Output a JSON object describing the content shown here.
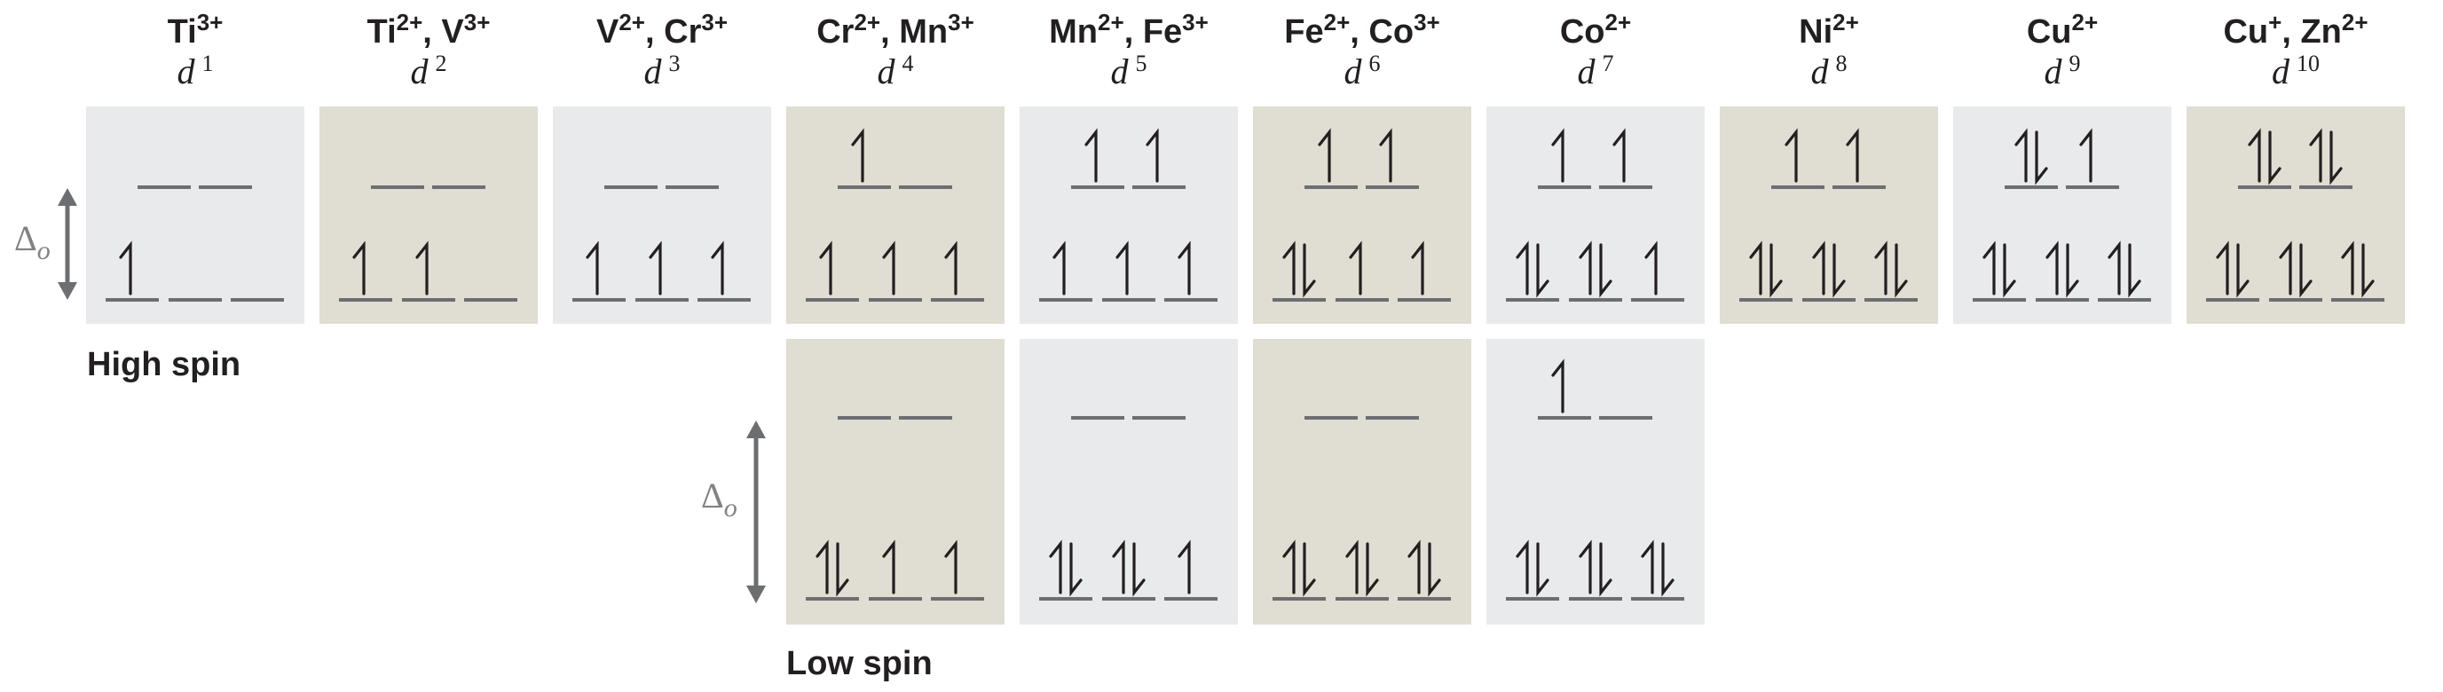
{
  "colors": {
    "gray_panel": "#e9eaec",
    "tan_panel": "#e0ddd3",
    "level": "#6d6e71",
    "text": "#231f20",
    "gap_arrow": "#6d6e71"
  },
  "columns": [
    {
      "ions": [
        {
          "sym": "Ti",
          "charge": "3+"
        }
      ],
      "config": "1",
      "high": {
        "eg": [
          "",
          ""
        ],
        "t2g": [
          "up",
          "",
          ""
        ],
        "panel": "gray"
      },
      "low": null
    },
    {
      "ions": [
        {
          "sym": "Ti",
          "charge": "2+"
        },
        {
          "sym": "V",
          "charge": "3+"
        }
      ],
      "config": "2",
      "high": {
        "eg": [
          "",
          ""
        ],
        "t2g": [
          "up",
          "up",
          ""
        ],
        "panel": "tan"
      },
      "low": null
    },
    {
      "ions": [
        {
          "sym": "V",
          "charge": "2+"
        },
        {
          "sym": "Cr",
          "charge": "3+"
        }
      ],
      "config": "3",
      "high": {
        "eg": [
          "",
          ""
        ],
        "t2g": [
          "up",
          "up",
          "up"
        ],
        "panel": "gray"
      },
      "low": null
    },
    {
      "ions": [
        {
          "sym": "Cr",
          "charge": "2+"
        },
        {
          "sym": "Mn",
          "charge": "3+"
        }
      ],
      "config": "4",
      "high": {
        "eg": [
          "up",
          ""
        ],
        "t2g": [
          "up",
          "up",
          "up"
        ],
        "panel": "tan"
      },
      "low": {
        "eg": [
          "",
          ""
        ],
        "t2g": [
          "pair",
          "up",
          "up"
        ],
        "panel": "tan"
      }
    },
    {
      "ions": [
        {
          "sym": "Mn",
          "charge": "2+"
        },
        {
          "sym": "Fe",
          "charge": "3+"
        }
      ],
      "config": "5",
      "high": {
        "eg": [
          "up",
          "up"
        ],
        "t2g": [
          "up",
          "up",
          "up"
        ],
        "panel": "gray"
      },
      "low": {
        "eg": [
          "",
          ""
        ],
        "t2g": [
          "pair",
          "pair",
          "up"
        ],
        "panel": "gray"
      }
    },
    {
      "ions": [
        {
          "sym": "Fe",
          "charge": "2+"
        },
        {
          "sym": "Co",
          "charge": "3+"
        }
      ],
      "config": "6",
      "high": {
        "eg": [
          "up",
          "up"
        ],
        "t2g": [
          "pair",
          "up",
          "up"
        ],
        "panel": "tan"
      },
      "low": {
        "eg": [
          "",
          ""
        ],
        "t2g": [
          "pair",
          "pair",
          "pair"
        ],
        "panel": "tan"
      }
    },
    {
      "ions": [
        {
          "sym": "Co",
          "charge": "2+"
        }
      ],
      "config": "7",
      "high": {
        "eg": [
          "up",
          "up"
        ],
        "t2g": [
          "pair",
          "pair",
          "up"
        ],
        "panel": "gray"
      },
      "low": {
        "eg": [
          "up",
          ""
        ],
        "t2g": [
          "pair",
          "pair",
          "pair"
        ],
        "panel": "gray"
      }
    },
    {
      "ions": [
        {
          "sym": "Ni",
          "charge": "2+"
        }
      ],
      "config": "8",
      "high": {
        "eg": [
          "up",
          "up"
        ],
        "t2g": [
          "pair",
          "pair",
          "pair"
        ],
        "panel": "tan"
      },
      "low": null
    },
    {
      "ions": [
        {
          "sym": "Cu",
          "charge": "2+"
        }
      ],
      "config": "9",
      "high": {
        "eg": [
          "pair",
          "up"
        ],
        "t2g": [
          "pair",
          "pair",
          "pair"
        ],
        "panel": "gray"
      },
      "low": null
    },
    {
      "ions": [
        {
          "sym": "Cu",
          "charge": "+"
        },
        {
          "sym": "Zn",
          "charge": "2+"
        }
      ],
      "config": "10",
      "high": {
        "eg": [
          "pair",
          "pair"
        ],
        "t2g": [
          "pair",
          "pair",
          "pair"
        ],
        "panel": "tan"
      },
      "low": null
    }
  ],
  "labels": {
    "high_spin": "High spin",
    "low_spin": "Low spin",
    "d_letter": "d",
    "delta_symbol": "Δ",
    "delta_subscript": "o"
  }
}
